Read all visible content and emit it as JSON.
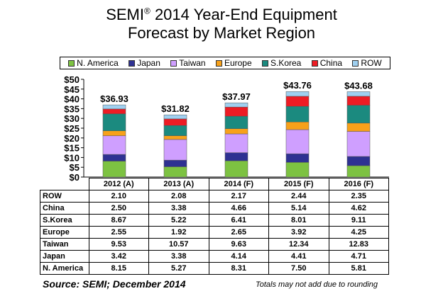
{
  "title_line1": "SEMI",
  "title_reg": "®",
  "title_line1_rest": " 2014 Year-End Equipment",
  "title_line2": "Forecast by Market Region",
  "colors": {
    "N. America": "#7dc242",
    "Japan": "#2e3192",
    "Taiwan": "#cf9fff",
    "Europe": "#f7a11a",
    "S.Korea": "#1b8a7f",
    "China": "#ed1c24",
    "ROW": "#9fd0f0"
  },
  "legend": [
    "N. America",
    "Japan",
    "Taiwan",
    "Europe",
    "S.Korea",
    "China",
    "ROW"
  ],
  "chart_data": {
    "type": "bar",
    "stacked": true,
    "categories": [
      "2012 (A)",
      "2013 (A)",
      "2014 (F)",
      "2015 (F)",
      "2016 (F)"
    ],
    "series": [
      {
        "name": "N. America",
        "values": [
          8.15,
          5.27,
          8.31,
          7.5,
          5.81
        ]
      },
      {
        "name": "Japan",
        "values": [
          3.42,
          3.38,
          4.14,
          4.41,
          4.71
        ]
      },
      {
        "name": "Taiwan",
        "values": [
          9.53,
          10.57,
          9.63,
          12.34,
          12.83
        ]
      },
      {
        "name": "Europe",
        "values": [
          2.55,
          1.92,
          2.65,
          3.92,
          4.25
        ]
      },
      {
        "name": "S.Korea",
        "values": [
          8.67,
          5.22,
          6.41,
          8.01,
          9.11
        ]
      },
      {
        "name": "China",
        "values": [
          2.5,
          3.38,
          4.66,
          5.14,
          4.62
        ]
      },
      {
        "name": "ROW",
        "values": [
          2.1,
          2.08,
          2.17,
          2.44,
          2.35
        ]
      }
    ],
    "totals": [
      "$36.93",
      "$31.82",
      "$37.97",
      "$43.76",
      "$43.68"
    ],
    "y_ticks": [
      "$0",
      "$5",
      "$10",
      "$15",
      "$20",
      "$25",
      "$30",
      "$35",
      "$40",
      "$45",
      "$50"
    ],
    "ylim": [
      0,
      50
    ],
    "legend_position": "top"
  },
  "table": {
    "header": [
      "2012 (A)",
      "2013 (A)",
      "2014 (F)",
      "2015 (F)",
      "2016 (F)"
    ],
    "rows": [
      {
        "label": "ROW",
        "values": [
          "2.10",
          "2.08",
          "2.17",
          "2.44",
          "2.35"
        ]
      },
      {
        "label": "China",
        "values": [
          "2.50",
          "3.38",
          "4.66",
          "5.14",
          "4.62"
        ]
      },
      {
        "label": "S.Korea",
        "values": [
          "8.67",
          "5.22",
          "6.41",
          "8.01",
          "9.11"
        ]
      },
      {
        "label": "Europe",
        "values": [
          "2.55",
          "1.92",
          "2.65",
          "3.92",
          "4.25"
        ]
      },
      {
        "label": "Taiwan",
        "values": [
          "9.53",
          "10.57",
          "9.63",
          "12.34",
          "12.83"
        ]
      },
      {
        "label": "Japan",
        "values": [
          "3.42",
          "3.38",
          "4.14",
          "4.41",
          "4.71"
        ]
      },
      {
        "label": "N. America",
        "values": [
          "8.15",
          "5.27",
          "8.31",
          "7.50",
          "5.81"
        ]
      }
    ]
  },
  "source": "Source: SEMI; December 2014",
  "note": "Totals may not add due to rounding"
}
